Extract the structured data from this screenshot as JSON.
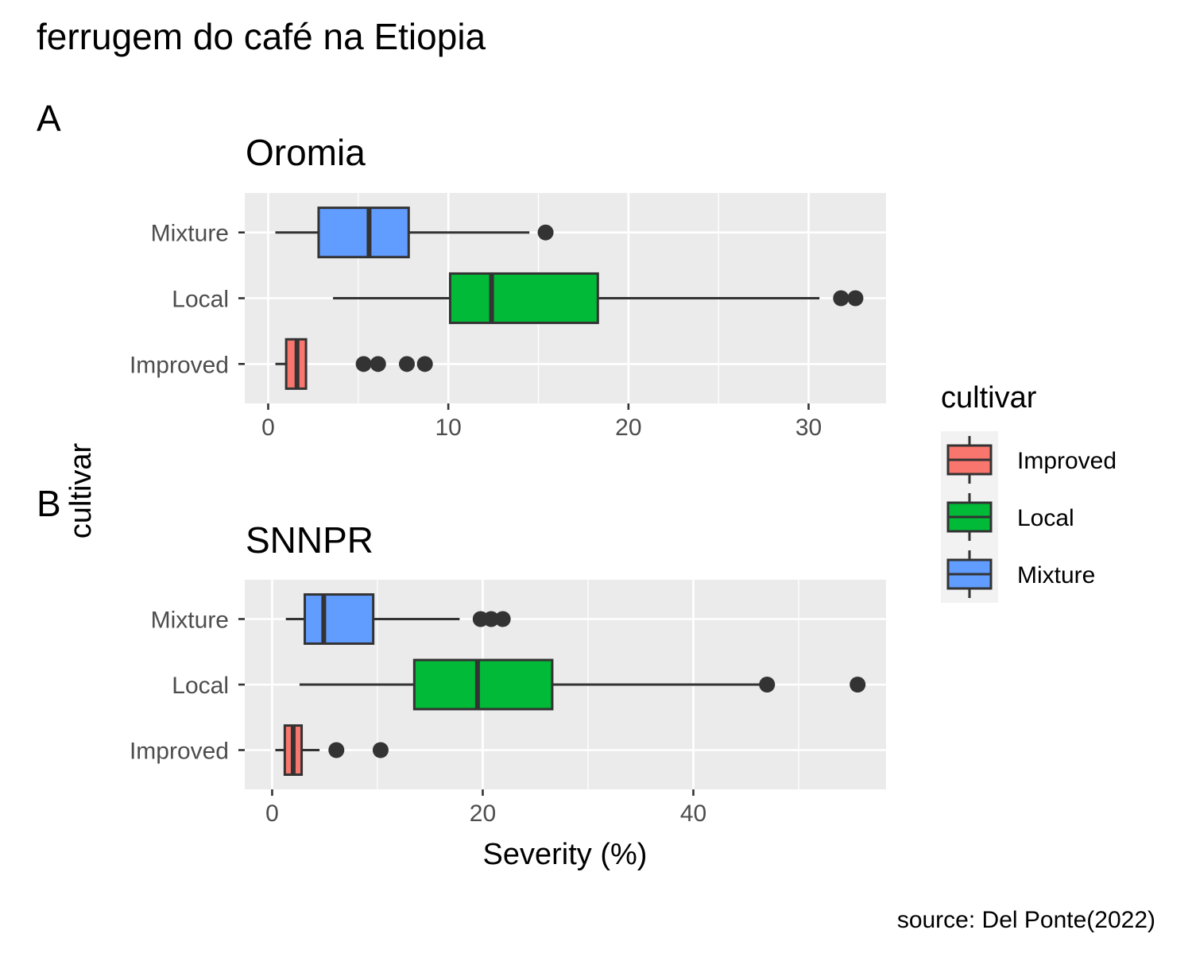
{
  "title": "ferrugem do café na Etiopia",
  "caption": "source: Del Ponte(2022)",
  "shared_ylabel": "cultivar",
  "legend": {
    "title": "cultivar",
    "items": [
      {
        "label": "Improved",
        "color": "#F8766D"
      },
      {
        "label": "Local",
        "color": "#00BA38"
      },
      {
        "label": "Mixture",
        "color": "#619CFF"
      }
    ]
  },
  "chart_data": [
    {
      "type": "boxplot",
      "tag": "A",
      "title": "Oromia",
      "xlabel": "",
      "ylabel": "cultivar",
      "xlim": [
        -1.3,
        34.3
      ],
      "xticks": [
        0,
        10,
        20,
        30
      ],
      "categories": [
        "Improved",
        "Local",
        "Mixture"
      ],
      "boxes": [
        {
          "category": "Improved",
          "min": 0.4,
          "q1": 1.0,
          "median": 1.6,
          "q3": 2.1,
          "max": 2.1,
          "outliers": [
            5.3,
            6.1,
            7.7,
            8.7
          ]
        },
        {
          "category": "Local",
          "min": 3.6,
          "q1": 10.1,
          "median": 12.4,
          "q3": 18.3,
          "max": 30.6,
          "outliers": [
            31.8,
            32.6
          ]
        },
        {
          "category": "Mixture",
          "min": 0.4,
          "q1": 2.8,
          "median": 5.6,
          "q3": 7.8,
          "max": 14.5,
          "outliers": [
            15.4
          ]
        }
      ]
    },
    {
      "type": "boxplot",
      "tag": "B",
      "title": "SNNPR",
      "xlabel": "Severity (%)",
      "ylabel": "cultivar",
      "xlim": [
        -2.6,
        58.3
      ],
      "xticks": [
        0,
        20,
        40
      ],
      "categories": [
        "Improved",
        "Local",
        "Mixture"
      ],
      "boxes": [
        {
          "category": "Improved",
          "min": 0.3,
          "q1": 1.2,
          "median": 2.0,
          "q3": 2.8,
          "max": 4.5,
          "outliers": [
            6.1,
            10.3
          ]
        },
        {
          "category": "Local",
          "min": 2.6,
          "q1": 13.5,
          "median": 19.5,
          "q3": 26.6,
          "max": 46.5,
          "outliers": [
            47.0,
            55.6
          ]
        },
        {
          "category": "Mixture",
          "min": 1.3,
          "q1": 3.1,
          "median": 4.9,
          "q3": 9.6,
          "max": 17.8,
          "outliers": [
            19.8,
            20.8,
            21.9
          ]
        }
      ]
    }
  ]
}
